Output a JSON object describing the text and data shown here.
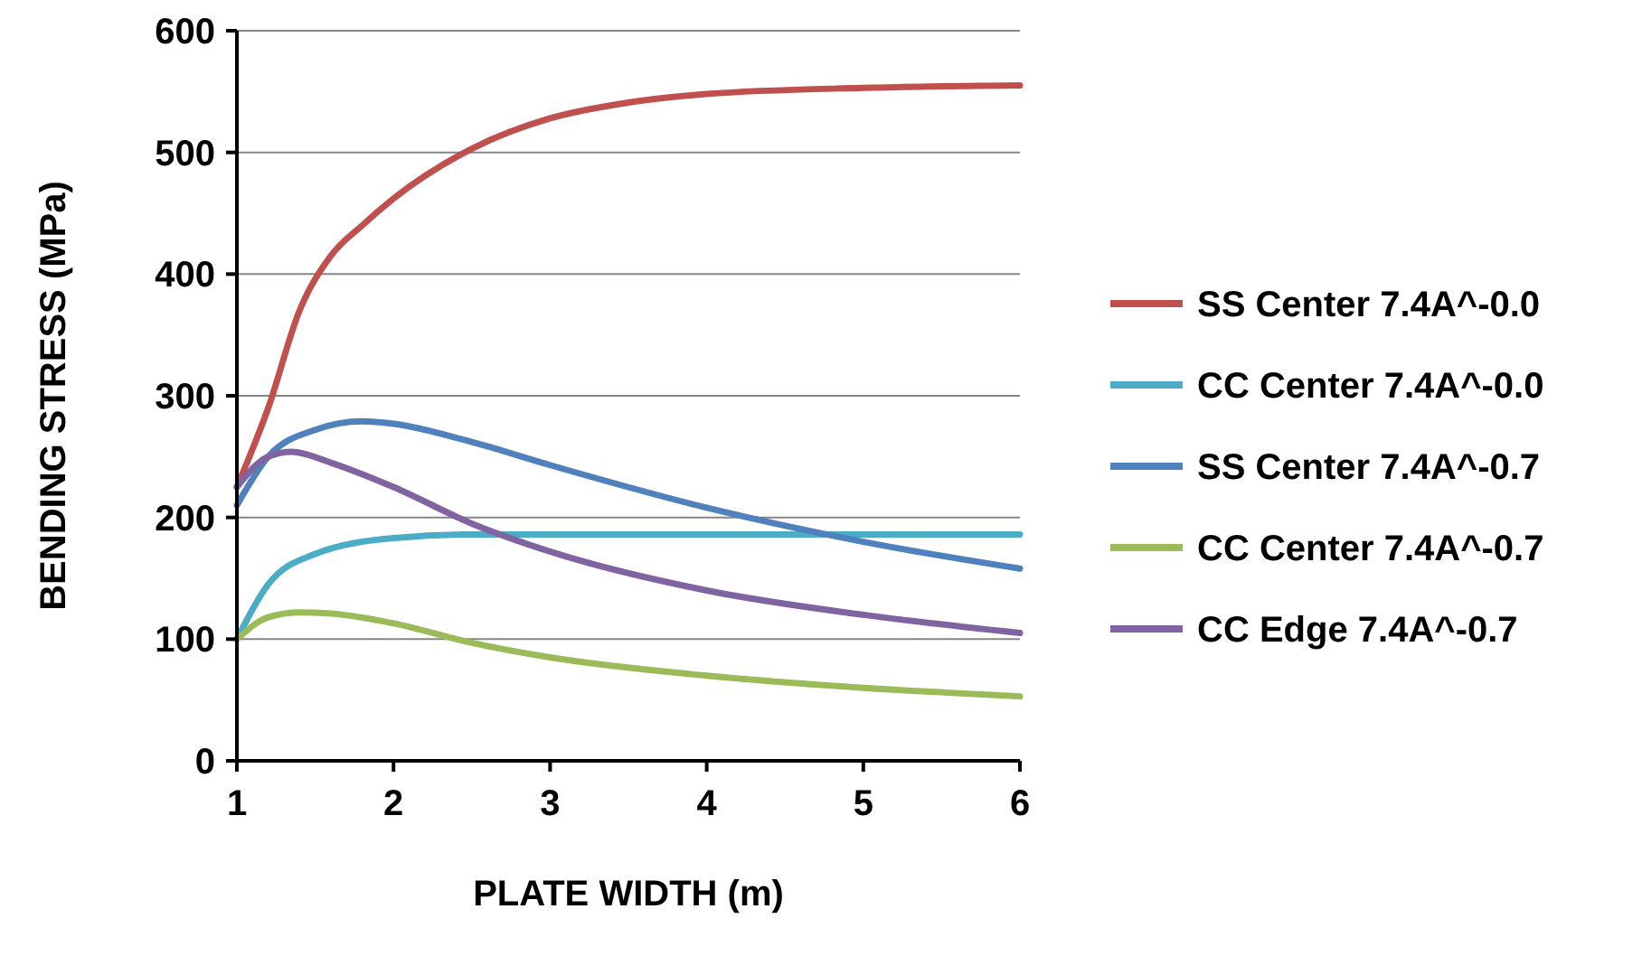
{
  "chart_data": {
    "type": "line",
    "xlabel": "PLATE WIDTH (m)",
    "ylabel": "BENDING STRESS (MPa)",
    "xlim": [
      1,
      6
    ],
    "xticks": [
      1,
      2,
      3,
      4,
      5,
      6
    ],
    "ylim": [
      0,
      600
    ],
    "yticks": [
      0,
      100,
      200,
      300,
      400,
      500,
      600
    ],
    "grid": "y",
    "legend": "right",
    "marker": "none",
    "line_style": "solid",
    "series": [
      {
        "name": "SS Center 7.4A^-0.0",
        "color": "#c0504d",
        "x": [
          1,
          1.2,
          1.4,
          1.6,
          1.8,
          2,
          2.5,
          3,
          3.5,
          4,
          5,
          6
        ],
        "values": [
          225,
          290,
          370,
          415,
          440,
          462,
          503,
          528,
          541,
          548,
          553,
          555
        ]
      },
      {
        "name": "CC Center 7.4A^-0.0",
        "color": "#4bacc6",
        "x": [
          1,
          1.2,
          1.5,
          2,
          2.5,
          3,
          4,
          5,
          6
        ],
        "values": [
          100,
          145,
          170,
          183,
          186,
          186,
          186,
          186,
          186
        ]
      },
      {
        "name": "SS Center 7.4A^-0.7",
        "color": "#4f81bd",
        "x": [
          1,
          1.2,
          1.5,
          1.8,
          2,
          2.5,
          3,
          4,
          5,
          6
        ],
        "values": [
          210,
          250,
          272,
          279,
          277,
          262,
          243,
          208,
          180,
          158
        ]
      },
      {
        "name": "CC Center 7.4A^-0.7",
        "color": "#9bbb59",
        "x": [
          1,
          1.2,
          1.4,
          1.6,
          2,
          2.5,
          3,
          4,
          5,
          6
        ],
        "values": [
          100,
          118,
          122,
          121,
          113,
          97,
          85,
          70,
          60,
          53
        ]
      },
      {
        "name": "CC Edge 7.4A^-0.7",
        "color": "#8064a2",
        "x": [
          1,
          1.2,
          1.35,
          1.6,
          2,
          2.5,
          3,
          4,
          5,
          6
        ],
        "values": [
          225,
          250,
          254,
          245,
          225,
          195,
          172,
          140,
          120,
          105
        ]
      }
    ]
  }
}
